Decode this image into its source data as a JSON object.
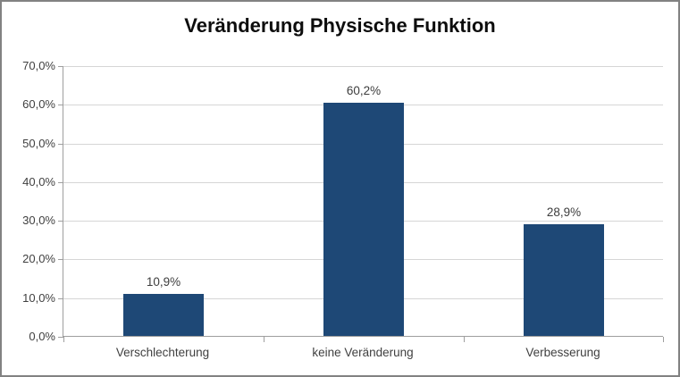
{
  "chart": {
    "title": "Veränderung Physische Funktion"
  },
  "chart_data": {
    "type": "bar",
    "title": "Veränderung Physische Funktion",
    "categories": [
      "Verschlechterung",
      "keine Veränderung",
      "Verbesserung"
    ],
    "values": [
      10.9,
      60.2,
      28.9
    ],
    "value_labels": [
      "10,9%",
      "60,2%",
      "28,9%"
    ],
    "xlabel": "",
    "ylabel": "",
    "ylim": [
      0,
      70
    ],
    "ytick_step": 10,
    "ytick_labels": [
      "0,0%",
      "10,0%",
      "20,0%",
      "30,0%",
      "40,0%",
      "50,0%",
      "60,0%",
      "70,0%"
    ],
    "grid": true,
    "legend": null
  },
  "colors": {
    "bar": "#1E4876",
    "gridline": "#d6d6d6",
    "axis": "#9e9e9e",
    "text": "#404040",
    "title": "#0d0d0d",
    "border": "#828282"
  }
}
